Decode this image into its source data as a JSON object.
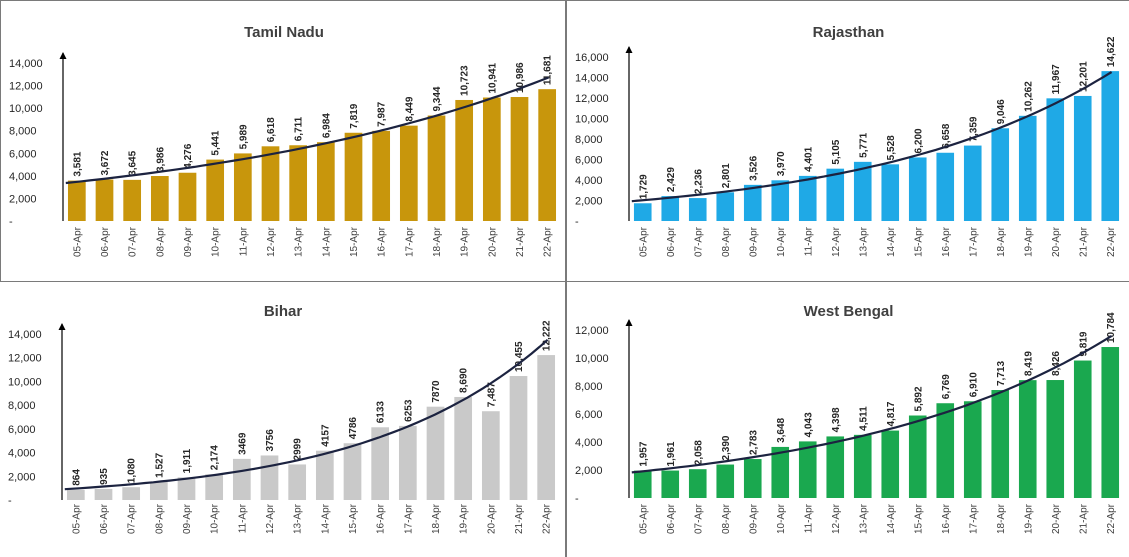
{
  "chart_data": [
    {
      "type": "bar",
      "title": "Tamil Nadu",
      "color": "#c8960c",
      "trendline": "exponential",
      "categories": [
        "05-Apr",
        "06-Apr",
        "07-Apr",
        "08-Apr",
        "09-Apr",
        "10-Apr",
        "11-Apr",
        "12-Apr",
        "13-Apr",
        "14-Apr",
        "15-Apr",
        "16-Apr",
        "17-Apr",
        "18-Apr",
        "19-Apr",
        "20-Apr",
        "21-Apr",
        "22-Apr"
      ],
      "values": [
        3581,
        3672,
        3645,
        3986,
        4276,
        5441,
        5989,
        6618,
        6711,
        6984,
        7819,
        7987,
        8449,
        9344,
        10723,
        10941,
        10986,
        11681
      ],
      "labels": [
        "3,581",
        "3,672",
        "3,645",
        "3,986",
        "4,276",
        "5,441",
        "5,989",
        "6,618",
        "6,711",
        "6,984",
        "7,819",
        "7,987",
        "8,449",
        "9,344",
        "10,723",
        "10,941",
        "10,986",
        "11,681"
      ],
      "yticks": [
        "-",
        "2,000",
        "4,000",
        "6,000",
        "8,000",
        "10,000",
        "12,000",
        "14,000"
      ],
      "ylim": [
        0,
        14000
      ]
    },
    {
      "type": "bar",
      "title": "Rajasthan",
      "color": "#1fa9e6",
      "trendline": "exponential",
      "categories": [
        "05-Apr",
        "06-Apr",
        "07-Apr",
        "08-Apr",
        "09-Apr",
        "10-Apr",
        "11-Apr",
        "12-Apr",
        "13-Apr",
        "14-Apr",
        "15-Apr",
        "16-Apr",
        "17-Apr",
        "18-Apr",
        "19-Apr",
        "20-Apr",
        "21-Apr",
        "22-Apr"
      ],
      "values": [
        1729,
        2429,
        2236,
        2801,
        3526,
        3970,
        4401,
        5105,
        5771,
        5528,
        6200,
        6658,
        7359,
        9046,
        10262,
        11967,
        12201,
        14622
      ],
      "labels": [
        "1,729",
        "2,429",
        "2,236",
        "2,801",
        "3,526",
        "3,970",
        "4,401",
        "5,105",
        "5,771",
        "5,528",
        "6,200",
        "6,658",
        "7,359",
        "9,046",
        "10,262",
        "11,967",
        "12,201",
        "14,622"
      ],
      "yticks": [
        "-",
        "2,000",
        "4,000",
        "6,000",
        "8,000",
        "10,000",
        "12,000",
        "14,000",
        "16,000"
      ],
      "ylim": [
        0,
        16000
      ]
    },
    {
      "type": "bar",
      "title": "Bihar",
      "color": "#c9c9c9",
      "trendline": "exponential",
      "categories": [
        "05-Apr",
        "06-Apr",
        "07-Apr",
        "08-Apr",
        "09-Apr",
        "10-Apr",
        "11-Apr",
        "12-Apr",
        "13-Apr",
        "14-Apr",
        "15-Apr",
        "16-Apr",
        "17-Apr",
        "18-Apr",
        "19-Apr",
        "20-Apr",
        "21-Apr",
        "22-Apr"
      ],
      "values": [
        864,
        935,
        1080,
        1527,
        1911,
        2174,
        3469,
        3756,
        2999,
        4157,
        4786,
        6133,
        6253,
        7870,
        8690,
        7487,
        10455,
        12222
      ],
      "labels": [
        "864",
        "935",
        "1,080",
        "1,527",
        "1,911",
        "2,174",
        "3469",
        "3756",
        "2999",
        "4157",
        "4786",
        "6133",
        "6253",
        "7870",
        "8,690",
        "7,487",
        "10,455",
        "12,222"
      ],
      "yticks": [
        "-",
        "2,000",
        "4,000",
        "6,000",
        "8,000",
        "10,000",
        "12,000",
        "14,000"
      ],
      "ylim": [
        0,
        14000
      ]
    },
    {
      "type": "bar",
      "title": "West Bengal",
      "color": "#1aa84f",
      "trendline": "exponential",
      "categories": [
        "05-Apr",
        "06-Apr",
        "07-Apr",
        "08-Apr",
        "09-Apr",
        "10-Apr",
        "11-Apr",
        "12-Apr",
        "13-Apr",
        "14-Apr",
        "15-Apr",
        "16-Apr",
        "17-Apr",
        "18-Apr",
        "19-Apr",
        "20-Apr",
        "21-Apr",
        "22-Apr"
      ],
      "values": [
        1957,
        1961,
        2058,
        2390,
        2783,
        3648,
        4043,
        4398,
        4511,
        4817,
        5892,
        6769,
        6910,
        7713,
        8419,
        8426,
        9819,
        10784
      ],
      "labels": [
        "1,957",
        "1,961",
        "2,058",
        "2,390",
        "2,783",
        "3,648",
        "4,043",
        "4,398",
        "4,511",
        "4,817",
        "5,892",
        "6,769",
        "6,910",
        "7,713",
        "8,419",
        "8,426",
        "9,819",
        "10,784"
      ],
      "yticks": [
        "-",
        "2,000",
        "4,000",
        "6,000",
        "8,000",
        "10,000",
        "12,000"
      ],
      "ylim": [
        0,
        12000
      ]
    }
  ]
}
